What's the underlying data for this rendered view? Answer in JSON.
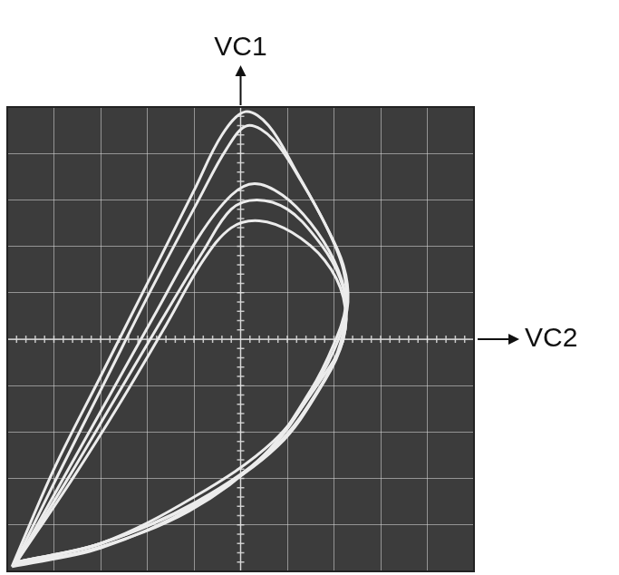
{
  "chart_data": {
    "type": "scatter",
    "x_label": "VC2",
    "y_label": "VC1",
    "xlim": [
      -5,
      5
    ],
    "ylim": [
      -5,
      5
    ],
    "xticks": [
      -5,
      -4,
      -3,
      -2,
      -1,
      0,
      1,
      2,
      3,
      4,
      5
    ],
    "yticks": [
      -5,
      -4,
      -3,
      -2,
      -1,
      0,
      1,
      2,
      3,
      4,
      5
    ],
    "grid": true,
    "tick_labels": false,
    "line_style": "solid",
    "marker": "none",
    "series": [
      {
        "color": "#ececec",
        "x": [
          -4.9,
          -4.0,
          -3.0,
          -2.0,
          -1.0,
          -0.4,
          0.1,
          0.6,
          1.2,
          1.8,
          2.2,
          2.3,
          2.1,
          1.6,
          0.6,
          -1.0,
          -3.0,
          -4.9
        ],
        "values": [
          -4.9,
          -2.8,
          -0.8,
          1.2,
          3.2,
          4.4,
          4.9,
          4.6,
          3.6,
          2.5,
          1.6,
          0.8,
          0.0,
          -1.0,
          -2.4,
          -3.6,
          -4.5,
          -4.9
        ]
      },
      {
        "color": "#ececec",
        "x": [
          -4.85,
          -3.9,
          -2.9,
          -1.9,
          -0.9,
          -0.3,
          0.15,
          0.7,
          1.3,
          1.85,
          2.2,
          2.25,
          2.0,
          1.5,
          0.5,
          -1.1,
          -3.1,
          -4.85
        ],
        "values": [
          -4.85,
          -2.9,
          -0.9,
          1.1,
          3.0,
          4.1,
          4.6,
          4.3,
          3.4,
          2.4,
          1.5,
          0.7,
          -0.1,
          -1.1,
          -2.5,
          -3.7,
          -4.5,
          -4.85
        ]
      },
      {
        "color": "#ececec",
        "x": [
          -4.8,
          -3.8,
          -2.8,
          -1.8,
          -0.9,
          -0.2,
          0.3,
          0.9,
          1.5,
          2.0,
          2.25,
          2.2,
          1.8,
          0.8,
          -0.9,
          -3.0,
          -4.8
        ],
        "values": [
          -4.8,
          -3.0,
          -1.2,
          0.6,
          2.2,
          3.1,
          3.35,
          3.1,
          2.5,
          1.7,
          0.9,
          0.0,
          -0.9,
          -2.3,
          -3.5,
          -4.4,
          -4.8
        ]
      },
      {
        "color": "#ececec",
        "x": [
          -4.8,
          -3.7,
          -2.7,
          -1.7,
          -0.8,
          -0.2,
          0.35,
          1.0,
          1.6,
          2.05,
          2.25,
          2.15,
          1.75,
          0.75,
          -0.95,
          -3.0,
          -4.8
        ],
        "values": [
          -4.8,
          -3.0,
          -1.3,
          0.4,
          1.9,
          2.8,
          3.0,
          2.8,
          2.2,
          1.5,
          0.8,
          -0.05,
          -0.95,
          -2.3,
          -3.5,
          -4.4,
          -4.8
        ]
      },
      {
        "color": "#ececec",
        "x": [
          -4.8,
          -3.6,
          -2.6,
          -1.6,
          -0.8,
          -0.2,
          0.4,
          1.1,
          1.8,
          2.2,
          2.2,
          1.7,
          0.7,
          -1.0,
          -3.0,
          -4.8
        ],
        "values": [
          -4.8,
          -3.0,
          -1.4,
          0.3,
          1.7,
          2.4,
          2.55,
          2.3,
          1.7,
          0.9,
          0.0,
          -0.9,
          -2.2,
          -3.4,
          -4.4,
          -4.8
        ]
      }
    ]
  }
}
